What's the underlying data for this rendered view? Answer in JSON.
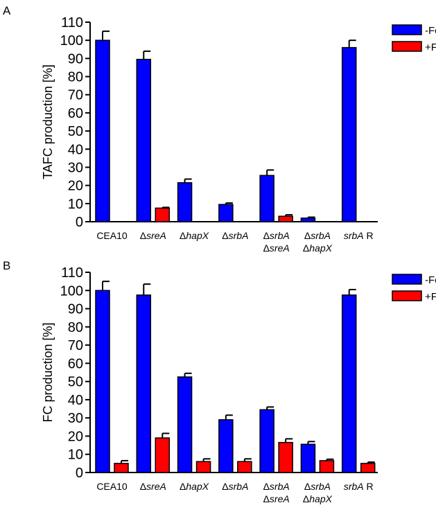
{
  "colors": {
    "minus_fe": "#0000ff",
    "plus_fe": "#ff0000",
    "axis": "#000000"
  },
  "chart_data": [
    {
      "type": "bar",
      "panel_letter": "A",
      "title": "",
      "ylabel": "TAFC production [%]",
      "xlabel": "",
      "ylim": [
        0,
        110
      ],
      "yticks": [
        0,
        10,
        20,
        30,
        40,
        50,
        60,
        70,
        80,
        90,
        100,
        110
      ],
      "grid": false,
      "legend_position": "top-right",
      "categories": [
        {
          "prefix": "",
          "lines": [
            "CEA10"
          ]
        },
        {
          "prefix": "Δ",
          "lines": [
            "sreA"
          ]
        },
        {
          "prefix": "Δ",
          "lines": [
            "hapX"
          ]
        },
        {
          "prefix": "Δ",
          "lines": [
            "srbA"
          ]
        },
        {
          "prefix": "Δ",
          "lines": [
            "srbA",
            "sreA"
          ]
        },
        {
          "prefix": "Δ",
          "lines": [
            "srbA",
            "hapX"
          ]
        },
        {
          "prefix": "",
          "lines": [
            "srbA"
          ],
          "suffix": " R"
        }
      ],
      "series": [
        {
          "name": "-Fe",
          "values": [
            100,
            89.5,
            21.5,
            9.5,
            25.5,
            2,
            96
          ],
          "errors": [
            5,
            4.5,
            2,
            0.8,
            3,
            0.5,
            4
          ]
        },
        {
          "name": "+Fe",
          "values": [
            0,
            7.5,
            0,
            0,
            3,
            0,
            0
          ],
          "errors": [
            0,
            0.4,
            0,
            0,
            0.8,
            0,
            0
          ]
        }
      ]
    },
    {
      "type": "bar",
      "panel_letter": "B",
      "title": "",
      "ylabel": "FC production [%]",
      "xlabel": "",
      "ylim": [
        0,
        110
      ],
      "yticks": [
        0,
        10,
        20,
        30,
        40,
        50,
        60,
        70,
        80,
        90,
        100,
        110
      ],
      "grid": false,
      "legend_position": "top-right",
      "categories": [
        {
          "prefix": "",
          "lines": [
            "CEA10"
          ]
        },
        {
          "prefix": "Δ",
          "lines": [
            "sreA"
          ]
        },
        {
          "prefix": "Δ",
          "lines": [
            "hapX"
          ]
        },
        {
          "prefix": "Δ",
          "lines": [
            "srbA"
          ]
        },
        {
          "prefix": "Δ",
          "lines": [
            "srbA",
            "sreA"
          ]
        },
        {
          "prefix": "Δ",
          "lines": [
            "srbA",
            "hapX"
          ]
        },
        {
          "prefix": "",
          "lines": [
            "srbA"
          ],
          "suffix": " R"
        }
      ],
      "series": [
        {
          "name": "-Fe",
          "values": [
            100,
            97.5,
            52.5,
            29,
            34.5,
            15.5,
            97.5
          ],
          "errors": [
            5,
            6,
            2,
            2.5,
            1.5,
            1.5,
            3
          ]
        },
        {
          "name": "+Fe",
          "values": [
            5,
            19,
            6,
            6,
            16.5,
            6.5,
            5
          ],
          "errors": [
            1.5,
            2.5,
            1.5,
            1.5,
            2,
            0.8,
            0.7
          ]
        }
      ]
    }
  ]
}
